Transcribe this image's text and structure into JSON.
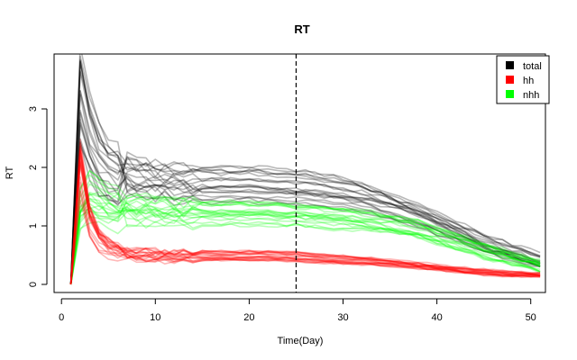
{
  "chart_data": {
    "type": "line",
    "title": "RT",
    "xlabel": "Time(Day)",
    "ylabel": "RT",
    "xlim": [
      1,
      51
    ],
    "ylim": [
      0,
      3.9
    ],
    "x_ticks": [
      0,
      10,
      20,
      30,
      40,
      50
    ],
    "y_ticks": [
      0,
      1,
      2,
      3
    ],
    "vline": {
      "x": 25,
      "style": "dashed"
    },
    "grid": false,
    "legend": {
      "position": "top-right",
      "entries": [
        {
          "name": "total",
          "color": "#000000"
        },
        {
          "name": "hh",
          "color": "#ff0000"
        },
        {
          "name": "nhh",
          "color": "#00ff00"
        }
      ]
    },
    "ensemble_runs_per_group": 20,
    "series": [
      {
        "name": "total",
        "color": "#000000",
        "line_opacity": 0.28,
        "x": [
          1,
          2,
          3,
          4,
          5,
          6,
          8,
          10,
          12,
          15,
          18,
          20,
          22,
          25,
          28,
          30,
          33,
          35,
          38,
          40,
          43,
          45,
          48,
          51
        ],
        "values": [
          0,
          3.3,
          2.6,
          2.2,
          2.0,
          1.9,
          1.8,
          1.75,
          1.72,
          1.7,
          1.7,
          1.7,
          1.68,
          1.65,
          1.6,
          1.55,
          1.45,
          1.35,
          1.2,
          1.05,
          0.85,
          0.7,
          0.55,
          0.4
        ]
      },
      {
        "name": "hh",
        "color": "#ff0000",
        "line_opacity": 0.28,
        "x": [
          1,
          2,
          3,
          4,
          5,
          6,
          8,
          10,
          12,
          15,
          18,
          20,
          22,
          25,
          28,
          30,
          33,
          35,
          38,
          40,
          43,
          45,
          48,
          51
        ],
        "values": [
          0,
          1.95,
          1.05,
          0.75,
          0.62,
          0.56,
          0.52,
          0.5,
          0.5,
          0.5,
          0.5,
          0.5,
          0.5,
          0.48,
          0.45,
          0.43,
          0.4,
          0.36,
          0.32,
          0.28,
          0.23,
          0.2,
          0.17,
          0.15
        ]
      },
      {
        "name": "nhh",
        "color": "#00ff00",
        "line_opacity": 0.28,
        "x": [
          1,
          2,
          3,
          4,
          5,
          6,
          8,
          10,
          12,
          15,
          18,
          20,
          22,
          25,
          28,
          30,
          33,
          35,
          38,
          40,
          43,
          45,
          48,
          51
        ],
        "values": [
          0,
          1.3,
          1.55,
          1.45,
          1.35,
          1.3,
          1.25,
          1.22,
          1.2,
          1.2,
          1.2,
          1.2,
          1.19,
          1.17,
          1.13,
          1.1,
          1.05,
          1.0,
          0.9,
          0.8,
          0.65,
          0.55,
          0.42,
          0.3
        ]
      }
    ]
  }
}
